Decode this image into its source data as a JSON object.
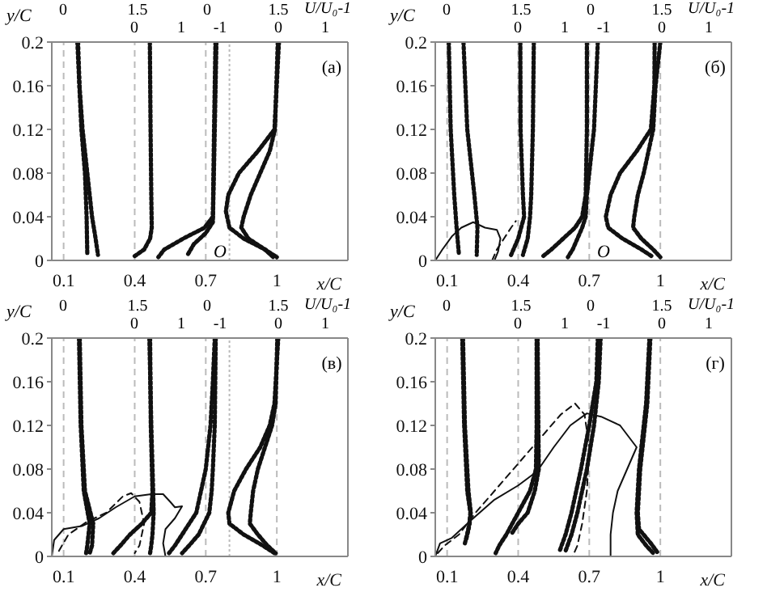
{
  "chart_data": [
    {
      "type": "line",
      "xlabel": "x/C",
      "ylabel": "y/C",
      "x2label": "U/U₀-1",
      "xlim": [
        0.05,
        1.3
      ],
      "xticks": [
        0.1,
        0.4,
        0.7,
        1
      ],
      "ylim": [
        0,
        0.2
      ],
      "yticks": [
        0,
        0.04,
        0.08,
        0.12,
        0.16,
        0.2
      ],
      "ref_lines": [
        {
          "axis": "x",
          "value": 0.1,
          "line_style": "dashed",
          "color": "#bbbbbb"
        },
        {
          "axis": "x",
          "value": 0.4,
          "line_style": "dashed",
          "color": "#bbbbbb"
        },
        {
          "axis": "x",
          "value": 0.7,
          "line_style": "dashed",
          "color": "#bbbbbb"
        },
        {
          "axis": "x",
          "value": 1,
          "line_style": "dashed",
          "color": "#bbbbbb"
        },
        {
          "axis": "x",
          "value": 0.8,
          "line_style": "dotted",
          "color": "#bbbbbb"
        }
      ],
      "annotations": [
        "0",
        "1.5",
        "0",
        "1.5",
        "0",
        "1",
        "-1",
        "0",
        "1",
        "(а)",
        "O"
      ],
      "series": [
        {
          "color": "#111111",
          "line_style": "dotted",
          "x": [
            0.161,
            0.167,
            0.18,
            0.2,
            0.22,
            0.235,
            0.245
          ],
          "values": [
            0.2,
            0.16,
            0.12,
            0.08,
            0.04,
            0.02,
            0.005
          ]
        },
        {
          "color": "#111111",
          "line_style": "dotted",
          "x": [
            0.158,
            0.175,
            0.19,
            0.197,
            0.2
          ],
          "values": [
            0.2,
            0.12,
            0.08,
            0.04,
            0.005
          ]
        },
        {
          "color": "#111111",
          "line_style": "dotted",
          "x": [
            0.464,
            0.467,
            0.47,
            0.472,
            0.465,
            0.44,
            0.4
          ],
          "values": [
            0.2,
            0.12,
            0.06,
            0.03,
            0.02,
            0.01,
            0.004
          ]
        },
        {
          "color": "#111111",
          "line_style": "dotted",
          "x": [
            0.741,
            0.735,
            0.73,
            0.695,
            0.605,
            0.525,
            0.5
          ],
          "values": [
            0.2,
            0.12,
            0.04,
            0.03,
            0.02,
            0.01,
            0.003
          ]
        },
        {
          "color": "#111111",
          "line_style": "dotted",
          "x": [
            0.745,
            0.738,
            0.73,
            0.7,
            0.65,
            0.623
          ],
          "values": [
            0.2,
            0.12,
            0.035,
            0.025,
            0.015,
            0.005
          ]
        },
        {
          "color": "#111111",
          "line_style": "dotted",
          "x": [
            1.009,
            0.99,
            0.92,
            0.84,
            0.795,
            0.785,
            0.8,
            0.86,
            0.95,
            1.0
          ],
          "values": [
            0.2,
            0.12,
            0.1,
            0.08,
            0.06,
            0.045,
            0.03,
            0.02,
            0.01,
            0.003
          ]
        },
        {
          "color": "#111111",
          "line_style": "dotted",
          "x": [
            1.004,
            0.992,
            0.97,
            0.93,
            0.89,
            0.86,
            0.85,
            0.88,
            0.95,
            0.985
          ],
          "values": [
            0.2,
            0.12,
            0.1,
            0.08,
            0.06,
            0.04,
            0.03,
            0.02,
            0.01,
            0.003
          ]
        }
      ]
    },
    {
      "type": "line",
      "xlabel": "x/C",
      "ylabel": "y/C",
      "x2label": "U/U₀-1",
      "xlim": [
        0.05,
        1.3
      ],
      "xticks": [
        0.1,
        0.4,
        0.7,
        1
      ],
      "ylim": [
        0,
        0.2
      ],
      "yticks": [
        0,
        0.04,
        0.08,
        0.12,
        0.16,
        0.2
      ],
      "ref_lines": [
        {
          "axis": "x",
          "value": 0.1,
          "line_style": "dashed",
          "color": "#bbbbbb"
        },
        {
          "axis": "x",
          "value": 0.4,
          "line_style": "dashed",
          "color": "#bbbbbb"
        },
        {
          "axis": "x",
          "value": 0.7,
          "line_style": "dashed",
          "color": "#bbbbbb"
        },
        {
          "axis": "x",
          "value": 1,
          "line_style": "dashed",
          "color": "#bbbbbb"
        }
      ],
      "annotations": [
        "0",
        "1.5",
        "0",
        "1.5",
        "0",
        "1",
        "-1",
        "0",
        "1",
        "(б)",
        "O"
      ],
      "series": [
        {
          "color": "#111111",
          "line_style": "dotted",
          "x": [
            0.107,
            0.115,
            0.13,
            0.14,
            0.15
          ],
          "values": [
            0.2,
            0.12,
            0.06,
            0.03,
            0.005
          ]
        },
        {
          "color": "#111111",
          "line_style": "dotted",
          "x": [
            0.169,
            0.185,
            0.215,
            0.228,
            0.225
          ],
          "values": [
            0.2,
            0.12,
            0.06,
            0.03,
            0.005
          ]
        },
        {
          "color": "#111111",
          "line_style": "solid",
          "x": [
            0.05,
            0.08,
            0.12,
            0.16,
            0.21,
            0.26,
            0.31,
            0.325,
            0.315,
            0.3
          ],
          "values": [
            0,
            0.01,
            0.022,
            0.03,
            0.035,
            0.03,
            0.028,
            0.02,
            0.008,
            0
          ]
        },
        {
          "color": "#111111",
          "line_style": "dashed",
          "x": [
            0.29,
            0.31,
            0.34,
            0.37,
            0.39
          ],
          "values": [
            0,
            0.01,
            0.02,
            0.03,
            0.036
          ]
        },
        {
          "color": "#111111",
          "line_style": "dotted",
          "x": [
            0.409,
            0.41,
            0.42,
            0.425,
            0.4,
            0.37
          ],
          "values": [
            0.2,
            0.12,
            0.06,
            0.04,
            0.02,
            0.005
          ]
        },
        {
          "color": "#111111",
          "line_style": "dotted",
          "x": [
            0.466,
            0.462,
            0.455,
            0.45,
            0.44,
            0.42
          ],
          "values": [
            0.2,
            0.12,
            0.06,
            0.04,
            0.02,
            0.005
          ]
        },
        {
          "color": "#111111",
          "line_style": "dotted",
          "x": [
            0.69,
            0.69,
            0.685,
            0.67,
            0.64,
            0.59,
            0.54,
            0.5
          ],
          "values": [
            0.2,
            0.12,
            0.06,
            0.04,
            0.03,
            0.02,
            0.01,
            0.003
          ]
        },
        {
          "color": "#111111",
          "line_style": "dotted",
          "x": [
            0.736,
            0.72,
            0.69,
            0.685,
            0.67,
            0.65,
            0.63,
            0.61
          ],
          "values": [
            0.2,
            0.12,
            0.06,
            0.04,
            0.03,
            0.02,
            0.01,
            0.003
          ]
        },
        {
          "color": "#111111",
          "line_style": "dotted",
          "x": [
            0.976,
            0.975,
            0.96,
            0.9,
            0.83,
            0.79,
            0.77,
            0.78,
            0.84,
            0.92,
            0.97
          ],
          "values": [
            0.2,
            0.16,
            0.12,
            0.1,
            0.08,
            0.06,
            0.04,
            0.03,
            0.02,
            0.01,
            0.003
          ]
        },
        {
          "color": "#111111",
          "line_style": "dotted",
          "x": [
            1.0,
            0.98,
            0.97,
            0.95,
            0.93,
            0.905,
            0.89,
            0.885,
            0.92,
            0.97,
            1.0
          ],
          "values": [
            0.2,
            0.16,
            0.12,
            0.1,
            0.08,
            0.06,
            0.04,
            0.03,
            0.02,
            0.01,
            0.003
          ]
        }
      ]
    },
    {
      "type": "line",
      "xlabel": "x/C",
      "ylabel": "y/C",
      "x2label": "U/U₀-1",
      "xlim": [
        0.05,
        1.3
      ],
      "xticks": [
        0.1,
        0.4,
        0.7,
        1
      ],
      "ylim": [
        0,
        0.2
      ],
      "yticks": [
        0,
        0.04,
        0.08,
        0.12,
        0.16,
        0.2
      ],
      "ref_lines": [
        {
          "axis": "x",
          "value": 0.1,
          "line_style": "dashed",
          "color": "#bbbbbb"
        },
        {
          "axis": "x",
          "value": 0.4,
          "line_style": "dashed",
          "color": "#bbbbbb"
        },
        {
          "axis": "x",
          "value": 0.7,
          "line_style": "dashed",
          "color": "#bbbbbb"
        },
        {
          "axis": "x",
          "value": 1,
          "line_style": "dashed",
          "color": "#bbbbbb"
        },
        {
          "axis": "x",
          "value": 0.8,
          "line_style": "dotted",
          "color": "#bbbbbb"
        }
      ],
      "annotations": [
        "0",
        "1.5",
        "0",
        "1.5",
        "0",
        "1",
        "-1",
        "0",
        "1",
        "(в)"
      ],
      "series": [
        {
          "color": "#111111",
          "line_style": "dotted",
          "x": [
            0.168,
            0.175,
            0.19,
            0.225,
            0.22,
            0.21
          ],
          "values": [
            0.2,
            0.12,
            0.06,
            0.03,
            0.01,
            0.003
          ]
        },
        {
          "color": "#111111",
          "line_style": "dotted",
          "x": [
            0.165,
            0.172,
            0.185,
            0.21,
            0.2,
            0.195
          ],
          "values": [
            0.2,
            0.12,
            0.06,
            0.03,
            0.01,
            0.003
          ]
        },
        {
          "color": "#111111",
          "line_style": "solid",
          "x": [
            0.05,
            0.06,
            0.1,
            0.18,
            0.25,
            0.32,
            0.4,
            0.47,
            0.52,
            0.55,
            0.57,
            0.6,
            0.57,
            0.53,
            0.52,
            0.53
          ],
          "values": [
            0,
            0.015,
            0.025,
            0.028,
            0.035,
            0.045,
            0.055,
            0.057,
            0.057,
            0.05,
            0.045,
            0.046,
            0.035,
            0.025,
            0.012,
            0
          ]
        },
        {
          "color": "#111111",
          "line_style": "dashed",
          "x": [
            0.08,
            0.12,
            0.2,
            0.28,
            0.35,
            0.385,
            0.42,
            0.44,
            0.42,
            0.4
          ],
          "values": [
            0.005,
            0.02,
            0.032,
            0.04,
            0.055,
            0.058,
            0.05,
            0.03,
            0.01,
            0.003
          ]
        },
        {
          "color": "#111111",
          "line_style": "dotted",
          "x": [
            0.465,
            0.468,
            0.475,
            0.47,
            0.43,
            0.38,
            0.34,
            0.31
          ],
          "values": [
            0.2,
            0.12,
            0.06,
            0.04,
            0.03,
            0.02,
            0.01,
            0.003
          ]
        },
        {
          "color": "#111111",
          "line_style": "dotted",
          "x": [
            0.462,
            0.47,
            0.478,
            0.48,
            0.475,
            0.47,
            0.465
          ],
          "values": [
            0.2,
            0.12,
            0.06,
            0.04,
            0.02,
            0.01,
            0.003
          ]
        },
        {
          "color": "#111111",
          "line_style": "dotted",
          "x": [
            0.738,
            0.73,
            0.72,
            0.7,
            0.68,
            0.66,
            0.6,
            0.57,
            0.545
          ],
          "values": [
            0.2,
            0.16,
            0.12,
            0.08,
            0.06,
            0.04,
            0.02,
            0.01,
            0.003
          ]
        },
        {
          "color": "#111111",
          "line_style": "dotted",
          "x": [
            0.742,
            0.738,
            0.73,
            0.725,
            0.715,
            0.67,
            0.63,
            0.6
          ],
          "values": [
            0.2,
            0.12,
            0.08,
            0.06,
            0.04,
            0.02,
            0.01,
            0.003
          ]
        },
        {
          "color": "#111111",
          "line_style": "dotted",
          "x": [
            1.006,
            0.99,
            0.97,
            0.93,
            0.87,
            0.82,
            0.795,
            0.8,
            0.86,
            0.94,
            0.99
          ],
          "values": [
            0.2,
            0.14,
            0.12,
            0.1,
            0.08,
            0.06,
            0.04,
            0.03,
            0.02,
            0.01,
            0.003
          ]
        },
        {
          "color": "#111111",
          "line_style": "dotted",
          "x": [
            1.002,
            0.995,
            0.98,
            0.95,
            0.92,
            0.9,
            0.89,
            0.886,
            0.92,
            0.96,
            0.995
          ],
          "values": [
            0.2,
            0.14,
            0.12,
            0.1,
            0.08,
            0.06,
            0.04,
            0.03,
            0.02,
            0.01,
            0.003
          ]
        }
      ]
    },
    {
      "type": "line",
      "xlabel": "x/C",
      "ylabel": "y/C",
      "x2label": "U/U₀-1",
      "xlim": [
        0.05,
        1.3
      ],
      "xticks": [
        0.1,
        0.4,
        0.7,
        1
      ],
      "ylim": [
        0,
        0.2
      ],
      "yticks": [
        0,
        0.04,
        0.08,
        0.12,
        0.16,
        0.2
      ],
      "ref_lines": [
        {
          "axis": "x",
          "value": 0.1,
          "line_style": "dashed",
          "color": "#bbbbbb"
        },
        {
          "axis": "x",
          "value": 0.4,
          "line_style": "dashed",
          "color": "#bbbbbb"
        },
        {
          "axis": "x",
          "value": 0.7,
          "line_style": "dashed",
          "color": "#bbbbbb"
        },
        {
          "axis": "x",
          "value": 1,
          "line_style": "dashed",
          "color": "#bbbbbb"
        }
      ],
      "annotations": [
        "0",
        "1.5",
        "0",
        "1.5",
        "0",
        "1",
        "-1",
        "0",
        "1",
        "(г)"
      ],
      "series": [
        {
          "color": "#111111",
          "line_style": "dotted",
          "x": [
            0.164,
            0.172,
            0.185,
            0.198,
            0.195,
            0.18
          ],
          "values": [
            0.2,
            0.12,
            0.06,
            0.04,
            0.03,
            0.015
          ]
        },
        {
          "color": "#111111",
          "line_style": "dotted",
          "x": [
            0.167,
            0.175,
            0.19,
            0.2,
            0.19,
            0.175
          ],
          "values": [
            0.2,
            0.12,
            0.06,
            0.04,
            0.025,
            0.012
          ]
        },
        {
          "color": "#111111",
          "line_style": "dotted",
          "x": [
            0.478,
            0.478,
            0.475,
            0.45,
            0.4,
            0.35,
            0.32,
            0.305
          ],
          "values": [
            0.2,
            0.12,
            0.08,
            0.06,
            0.04,
            0.02,
            0.01,
            0.003
          ]
        },
        {
          "color": "#111111",
          "line_style": "dotted",
          "x": [
            0.482,
            0.485,
            0.487,
            0.47,
            0.44,
            0.4,
            0.37
          ],
          "values": [
            0.2,
            0.12,
            0.08,
            0.06,
            0.04,
            0.03,
            0.02
          ]
        },
        {
          "color": "#111111",
          "line_style": "dotted",
          "x": [
            0.736,
            0.73,
            0.7,
            0.665,
            0.625,
            0.6,
            0.575
          ],
          "values": [
            0.2,
            0.16,
            0.12,
            0.08,
            0.04,
            0.02,
            0.005
          ]
        },
        {
          "color": "#111111",
          "line_style": "dotted",
          "x": [
            0.748,
            0.74,
            0.72,
            0.69,
            0.65,
            0.625,
            0.6
          ],
          "values": [
            0.2,
            0.16,
            0.12,
            0.08,
            0.04,
            0.02,
            0.005
          ]
        },
        {
          "color": "#111111",
          "line_style": "dotted",
          "x": [
            0.954,
            0.94,
            0.92,
            0.91,
            0.9,
            0.905,
            0.94,
            0.97
          ],
          "values": [
            0.2,
            0.14,
            0.1,
            0.08,
            0.04,
            0.02,
            0.01,
            0.003
          ]
        },
        {
          "color": "#111111",
          "line_style": "dotted",
          "x": [
            0.958,
            0.945,
            0.925,
            0.915,
            0.905,
            0.91,
            0.96,
            0.99
          ],
          "values": [
            0.2,
            0.14,
            0.1,
            0.08,
            0.04,
            0.025,
            0.012,
            0.003
          ]
        },
        {
          "color": "#111111",
          "line_style": "solid",
          "x": [
            0.05,
            0.07,
            0.12,
            0.2,
            0.3,
            0.4,
            0.48,
            0.55,
            0.62,
            0.69,
            0.75,
            0.83,
            0.9,
            0.86,
            0.82,
            0.8,
            0.79,
            0.79
          ],
          "values": [
            0,
            0.012,
            0.017,
            0.033,
            0.052,
            0.065,
            0.078,
            0.1,
            0.12,
            0.131,
            0.128,
            0.12,
            0.1,
            0.08,
            0.06,
            0.04,
            0.02,
            0
          ]
        },
        {
          "color": "#111111",
          "line_style": "dashed",
          "x": [
            0.06,
            0.09,
            0.15,
            0.22,
            0.3,
            0.4,
            0.5,
            0.58,
            0.64,
            0.68,
            0.7,
            0.69,
            0.67,
            0.65,
            0.63
          ],
          "values": [
            0.003,
            0.01,
            0.02,
            0.04,
            0.06,
            0.085,
            0.11,
            0.13,
            0.14,
            0.13,
            0.1,
            0.06,
            0.03,
            0.01,
            0
          ]
        }
      ]
    }
  ]
}
